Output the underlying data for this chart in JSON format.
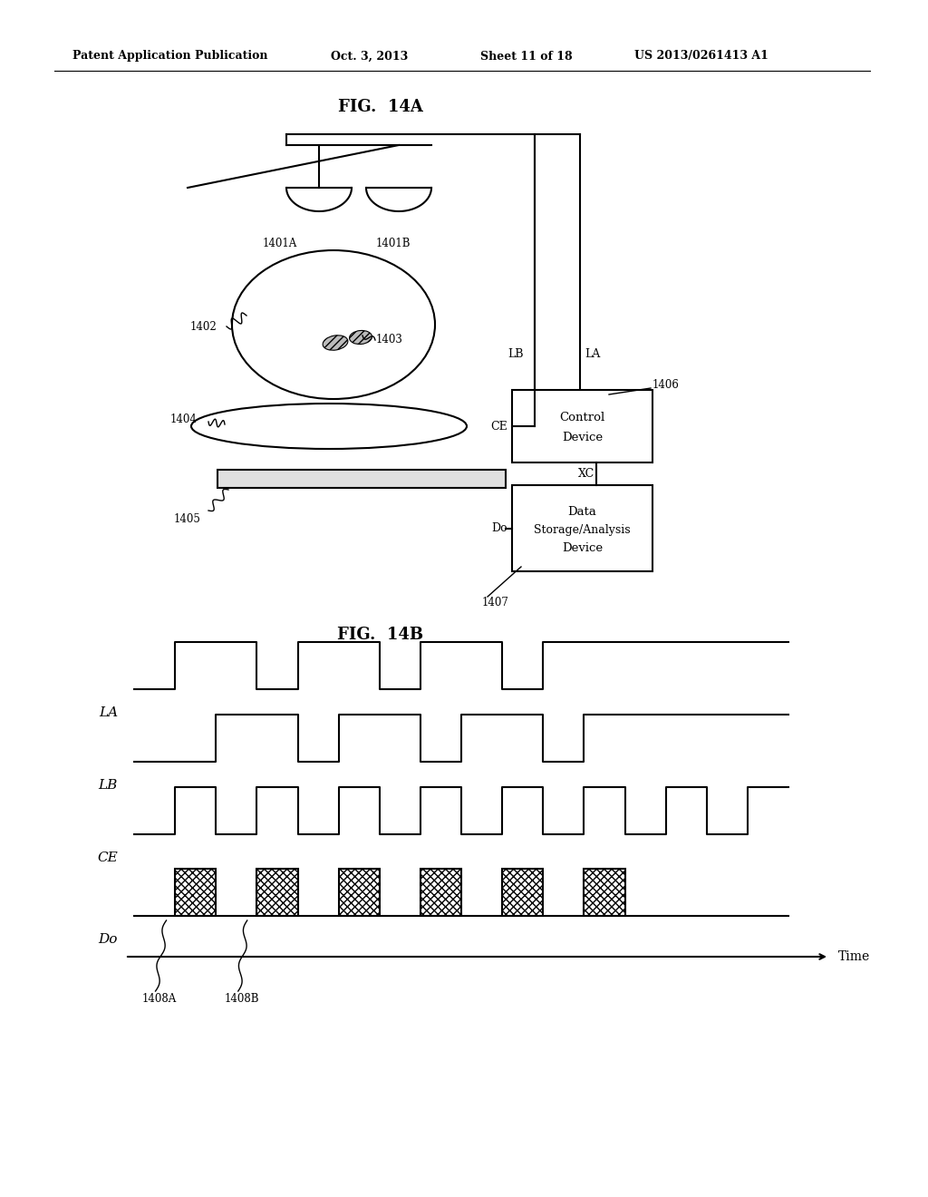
{
  "bg_color": "#ffffff",
  "header_text": "Patent Application Publication",
  "header_date": "Oct. 3, 2013",
  "header_sheet": "Sheet 11 of 18",
  "header_patent": "US 2013/0261413 A1",
  "fig14a_title": "FIG.  14A",
  "fig14b_title": "FIG.  14B",
  "signal_labels": [
    "LA",
    "LB",
    "CE",
    "Do"
  ],
  "time_label": "Time",
  "label_1408A": "1408A",
  "label_1408B": "1408B",
  "label_1401A": "1401A",
  "label_1401B": "1401B",
  "label_1402": "1402",
  "label_1403": "1403",
  "label_1404": "1404",
  "label_1405": "1405",
  "label_1406": "1406",
  "label_1407": "1407",
  "label_LB": "LB",
  "label_LA": "LA",
  "label_CE": "CE",
  "label_XC": "XC",
  "label_Do": "Do",
  "ctrl_line1": "Control",
  "ctrl_line2": "Device",
  "data_line1": "Data",
  "data_line2": "Storage/Analysis",
  "data_line3": "Device"
}
